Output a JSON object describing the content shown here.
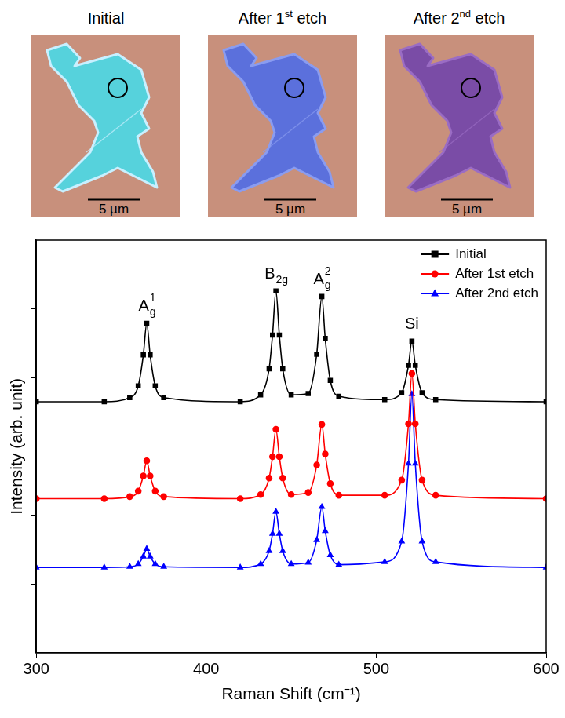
{
  "micrographs": {
    "panels": [
      {
        "title": "Initial"
      },
      {
        "title": "After 1st etch"
      },
      {
        "title": "After 2nd etch"
      }
    ],
    "scale_bar": "5 µm"
  },
  "chart_data": {
    "type": "line",
    "x_label": "Raman Shift (cm⁻¹)",
    "y_label": "Intensity (arb. unit)",
    "x": [
      300,
      340,
      355,
      360,
      363,
      365,
      367,
      370,
      375,
      420,
      432,
      437,
      439,
      441,
      443,
      445,
      450,
      460,
      465,
      468,
      470,
      473,
      478,
      505,
      515,
      519,
      521,
      523,
      527,
      535,
      600
    ],
    "series": [
      {
        "name": "Initial",
        "color": "#000000",
        "marker": "square",
        "values": [
          3.65,
          3.65,
          3.71,
          3.88,
          4.33,
          4.79,
          4.33,
          3.88,
          3.71,
          3.65,
          3.75,
          4.13,
          4.62,
          5.26,
          4.62,
          4.13,
          3.75,
          3.77,
          4.34,
          5.18,
          4.57,
          3.96,
          3.73,
          3.68,
          3.78,
          4.18,
          4.53,
          4.18,
          3.78,
          3.68,
          3.65
        ]
      },
      {
        "name": "After 1st etch",
        "color": "#ff0000",
        "marker": "circle",
        "values": [
          2.24,
          2.24,
          2.27,
          2.35,
          2.57,
          2.79,
          2.57,
          2.35,
          2.27,
          2.24,
          2.3,
          2.54,
          2.85,
          3.25,
          2.85,
          2.54,
          2.3,
          2.33,
          2.73,
          3.32,
          2.89,
          2.46,
          2.29,
          2.29,
          2.51,
          3.33,
          4.06,
          3.33,
          2.51,
          2.29,
          2.24
        ]
      },
      {
        "name": "After 2nd etch",
        "color": "#0000ff",
        "marker": "triangle",
        "values": [
          1.24,
          1.24,
          1.25,
          1.29,
          1.4,
          1.51,
          1.4,
          1.29,
          1.25,
          1.24,
          1.29,
          1.48,
          1.73,
          2.05,
          1.73,
          1.48,
          1.29,
          1.31,
          1.64,
          2.12,
          1.77,
          1.42,
          1.28,
          1.32,
          1.62,
          2.75,
          3.76,
          2.75,
          1.62,
          1.32,
          1.24
        ]
      }
    ],
    "peak_labels": [
      {
        "x": 365,
        "text": "A",
        "sub": "g",
        "sup": "1"
      },
      {
        "x": 441,
        "text": "B",
        "sub": "2g"
      },
      {
        "x": 468,
        "text": "A",
        "sub": "g",
        "sup": "2"
      },
      {
        "x": 521,
        "text": "Si"
      }
    ],
    "xlim": [
      300,
      600
    ],
    "xticks": [
      300,
      400,
      500,
      600
    ],
    "ylim": [
      0,
      6
    ],
    "yticks": [
      1,
      2,
      3,
      4,
      5
    ],
    "tick_labels": "x",
    "grid": false,
    "legend": "top right"
  }
}
